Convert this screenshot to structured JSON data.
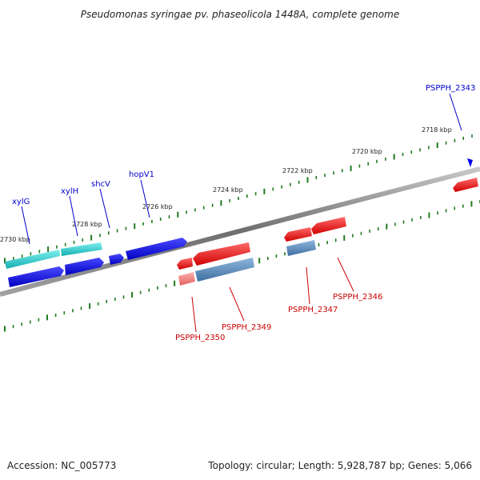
{
  "title": "Pseudomonas syringae pv. phaseolicola 1448A, complete genome",
  "footer": {
    "accession": "Accession: NC_005773",
    "topology": "Topology: circular; Length: 5,928,787 bp; Genes: 5,066"
  },
  "scale": {
    "kbp_labels": [
      "2730 kbp",
      "2728 kbp",
      "2726 kbp",
      "2724 kbp",
      "2722 kbp",
      "2720 kbp",
      "2718 kbp"
    ]
  },
  "genes": {
    "forward_labels": [
      "xylG",
      "xylH",
      "shcV",
      "hopV1",
      "PSPPH_2343"
    ],
    "reverse_labels": [
      "PSPPH_2346",
      "PSPPH_2347",
      "PSPPH_2349",
      "PSPPH_2350"
    ]
  },
  "colors": {
    "forward_label": "#0000cc",
    "reverse_label": "#cc0000",
    "tick": "#1f7a1f",
    "backbone": "#808080",
    "cds_blue": "#0000ee",
    "cds_cyan": "#1ec8c8",
    "cds_red": "#ee1111",
    "cds_steel": "#4a7fb0",
    "cds_pink": "#f08080"
  }
}
